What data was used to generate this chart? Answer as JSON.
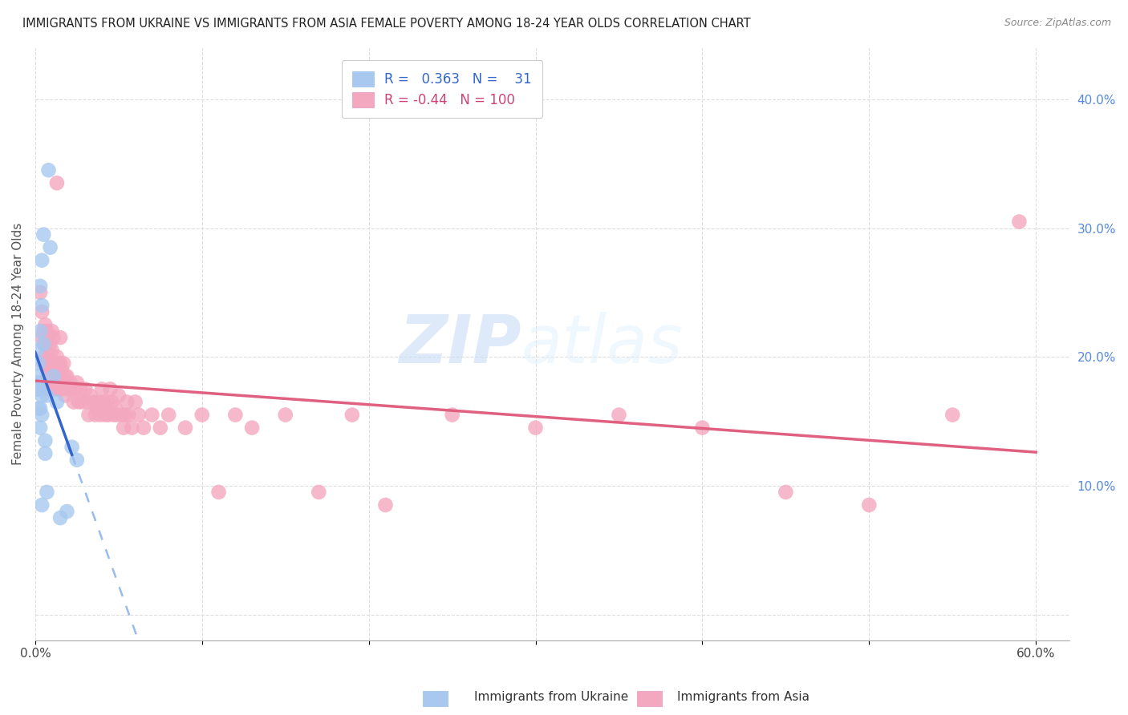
{
  "title": "IMMIGRANTS FROM UKRAINE VS IMMIGRANTS FROM ASIA FEMALE POVERTY AMONG 18-24 YEAR OLDS CORRELATION CHART",
  "source": "Source: ZipAtlas.com",
  "ylabel": "Female Poverty Among 18-24 Year Olds",
  "xlim": [
    0.0,
    0.62
  ],
  "ylim": [
    -0.02,
    0.44
  ],
  "yticks": [
    0.0,
    0.1,
    0.2,
    0.3,
    0.4
  ],
  "legend_ukraine": "Immigrants from Ukraine",
  "legend_asia": "Immigrants from Asia",
  "R_ukraine": 0.363,
  "N_ukraine": 31,
  "R_asia": -0.44,
  "N_asia": 100,
  "ukraine_color": "#a8c8f0",
  "asia_color": "#f4a8c0",
  "ukraine_line_color": "#3366cc",
  "ukraine_dash_color": "#99bbee",
  "asia_line_color": "#e06080",
  "ukraine_scatter": [
    [
      0.001,
      0.175
    ],
    [
      0.001,
      0.205
    ],
    [
      0.001,
      0.18
    ],
    [
      0.002,
      0.16
    ],
    [
      0.002,
      0.195
    ],
    [
      0.002,
      0.185
    ],
    [
      0.002,
      0.175
    ],
    [
      0.003,
      0.255
    ],
    [
      0.003,
      0.22
    ],
    [
      0.003,
      0.18
    ],
    [
      0.003,
      0.16
    ],
    [
      0.003,
      0.145
    ],
    [
      0.004,
      0.275
    ],
    [
      0.004,
      0.24
    ],
    [
      0.004,
      0.17
    ],
    [
      0.004,
      0.155
    ],
    [
      0.004,
      0.085
    ],
    [
      0.005,
      0.295
    ],
    [
      0.005,
      0.21
    ],
    [
      0.006,
      0.135
    ],
    [
      0.006,
      0.125
    ],
    [
      0.007,
      0.17
    ],
    [
      0.007,
      0.095
    ],
    [
      0.008,
      0.345
    ],
    [
      0.009,
      0.285
    ],
    [
      0.011,
      0.185
    ],
    [
      0.013,
      0.165
    ],
    [
      0.015,
      0.075
    ],
    [
      0.019,
      0.08
    ],
    [
      0.022,
      0.13
    ],
    [
      0.025,
      0.12
    ]
  ],
  "asia_scatter": [
    [
      0.003,
      0.25
    ],
    [
      0.004,
      0.235
    ],
    [
      0.004,
      0.215
    ],
    [
      0.005,
      0.22
    ],
    [
      0.005,
      0.2
    ],
    [
      0.005,
      0.195
    ],
    [
      0.006,
      0.225
    ],
    [
      0.006,
      0.21
    ],
    [
      0.006,
      0.195
    ],
    [
      0.007,
      0.22
    ],
    [
      0.007,
      0.205
    ],
    [
      0.007,
      0.19
    ],
    [
      0.007,
      0.175
    ],
    [
      0.008,
      0.215
    ],
    [
      0.008,
      0.195
    ],
    [
      0.008,
      0.185
    ],
    [
      0.008,
      0.175
    ],
    [
      0.009,
      0.21
    ],
    [
      0.009,
      0.195
    ],
    [
      0.009,
      0.18
    ],
    [
      0.01,
      0.22
    ],
    [
      0.01,
      0.205
    ],
    [
      0.01,
      0.19
    ],
    [
      0.01,
      0.175
    ],
    [
      0.011,
      0.215
    ],
    [
      0.011,
      0.195
    ],
    [
      0.012,
      0.185
    ],
    [
      0.012,
      0.175
    ],
    [
      0.013,
      0.335
    ],
    [
      0.013,
      0.2
    ],
    [
      0.013,
      0.185
    ],
    [
      0.014,
      0.195
    ],
    [
      0.014,
      0.175
    ],
    [
      0.015,
      0.215
    ],
    [
      0.015,
      0.195
    ],
    [
      0.016,
      0.19
    ],
    [
      0.016,
      0.175
    ],
    [
      0.017,
      0.195
    ],
    [
      0.017,
      0.18
    ],
    [
      0.018,
      0.185
    ],
    [
      0.018,
      0.17
    ],
    [
      0.019,
      0.185
    ],
    [
      0.02,
      0.175
    ],
    [
      0.021,
      0.18
    ],
    [
      0.022,
      0.175
    ],
    [
      0.023,
      0.165
    ],
    [
      0.024,
      0.175
    ],
    [
      0.025,
      0.18
    ],
    [
      0.026,
      0.165
    ],
    [
      0.027,
      0.175
    ],
    [
      0.028,
      0.165
    ],
    [
      0.03,
      0.175
    ],
    [
      0.031,
      0.165
    ],
    [
      0.032,
      0.155
    ],
    [
      0.033,
      0.17
    ],
    [
      0.035,
      0.165
    ],
    [
      0.036,
      0.155
    ],
    [
      0.037,
      0.16
    ],
    [
      0.038,
      0.165
    ],
    [
      0.039,
      0.155
    ],
    [
      0.04,
      0.175
    ],
    [
      0.041,
      0.165
    ],
    [
      0.042,
      0.155
    ],
    [
      0.043,
      0.165
    ],
    [
      0.044,
      0.155
    ],
    [
      0.045,
      0.175
    ],
    [
      0.046,
      0.165
    ],
    [
      0.047,
      0.155
    ],
    [
      0.048,
      0.16
    ],
    [
      0.049,
      0.155
    ],
    [
      0.05,
      0.17
    ],
    [
      0.052,
      0.155
    ],
    [
      0.053,
      0.145
    ],
    [
      0.054,
      0.155
    ],
    [
      0.055,
      0.165
    ],
    [
      0.056,
      0.155
    ],
    [
      0.058,
      0.145
    ],
    [
      0.06,
      0.165
    ],
    [
      0.062,
      0.155
    ],
    [
      0.065,
      0.145
    ],
    [
      0.07,
      0.155
    ],
    [
      0.075,
      0.145
    ],
    [
      0.08,
      0.155
    ],
    [
      0.09,
      0.145
    ],
    [
      0.1,
      0.155
    ],
    [
      0.11,
      0.095
    ],
    [
      0.12,
      0.155
    ],
    [
      0.13,
      0.145
    ],
    [
      0.15,
      0.155
    ],
    [
      0.17,
      0.095
    ],
    [
      0.19,
      0.155
    ],
    [
      0.21,
      0.085
    ],
    [
      0.25,
      0.155
    ],
    [
      0.3,
      0.145
    ],
    [
      0.35,
      0.155
    ],
    [
      0.4,
      0.145
    ],
    [
      0.45,
      0.095
    ],
    [
      0.5,
      0.085
    ],
    [
      0.55,
      0.155
    ],
    [
      0.59,
      0.305
    ]
  ],
  "background_color": "#ffffff",
  "grid_color": "#dddddd",
  "watermark_zip": "ZIP",
  "watermark_atlas": "atlas"
}
